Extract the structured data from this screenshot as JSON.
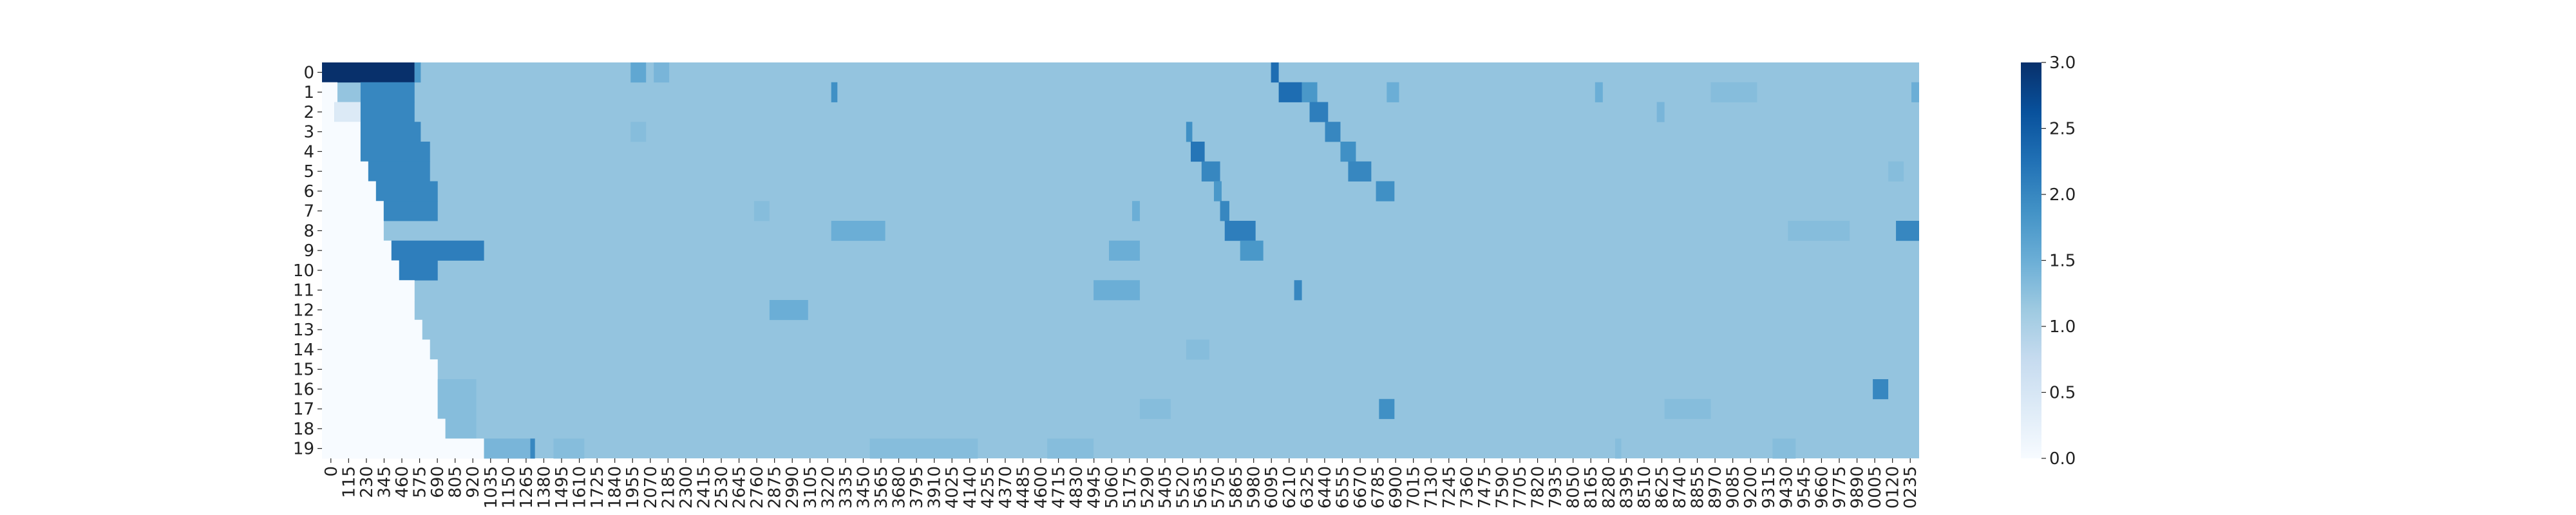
{
  "chart_data": {
    "type": "heatmap",
    "title": "",
    "xlabel": "",
    "ylabel": "",
    "y_categories": [
      "0",
      "1",
      "2",
      "3",
      "4",
      "5",
      "6",
      "7",
      "8",
      "9",
      "10",
      "11",
      "12",
      "13",
      "14",
      "15",
      "16",
      "17",
      "18",
      "19"
    ],
    "x_tick_labels": [
      "0",
      "115",
      "230",
      "345",
      "460",
      "575",
      "690",
      "805",
      "920",
      "1035",
      "1150",
      "1265",
      "1380",
      "1495",
      "1610",
      "1725",
      "1840",
      "1955",
      "2070",
      "2185",
      "2300",
      "2415",
      "2530",
      "2645",
      "2760",
      "2875",
      "2990",
      "3105",
      "3220",
      "3335",
      "3450",
      "3565",
      "3680",
      "3795",
      "3910",
      "4025",
      "4140",
      "4255",
      "4370",
      "4485",
      "4600",
      "4715",
      "4830",
      "4945",
      "5060",
      "5175",
      "5290",
      "5405",
      "5520",
      "5635",
      "5750",
      "5865",
      "5980",
      "6095",
      "6210",
      "6325",
      "6440",
      "6555",
      "6670",
      "6785",
      "6900",
      "7015",
      "7130",
      "7245",
      "7360",
      "7475",
      "7590",
      "7705",
      "7820",
      "7935",
      "8050",
      "8165",
      "8280",
      "8395",
      "8510",
      "8625",
      "8740",
      "8855",
      "8970",
      "9085",
      "9200",
      "9315",
      "9430",
      "9545",
      "9660",
      "9775",
      "9890",
      "0005",
      "0120",
      "0235"
    ],
    "x_range": [
      0,
      10350
    ],
    "colorscale": "Blues",
    "colorbar": {
      "min": 0.0,
      "max": 3.0,
      "ticks": [
        "0.0",
        "0.5",
        "1.0",
        "1.5",
        "2.0",
        "2.5",
        "3.0"
      ]
    },
    "background_value": 1.2,
    "rows": [
      {
        "row": 0,
        "segments": [
          [
            0,
            600,
            3.0
          ],
          [
            600,
            640,
            1.8
          ],
          [
            2000,
            2100,
            1.6
          ],
          [
            2150,
            2250,
            1.4
          ],
          [
            6150,
            6200,
            2.3
          ]
        ]
      },
      {
        "row": 1,
        "segments": [
          [
            0,
            100,
            0.0
          ],
          [
            250,
            600,
            2.0
          ],
          [
            3300,
            3340,
            1.9
          ],
          [
            6200,
            6350,
            2.3
          ],
          [
            6350,
            6450,
            1.8
          ],
          [
            6900,
            6980,
            1.5
          ],
          [
            8250,
            8300,
            1.5
          ],
          [
            9000,
            9300,
            1.3
          ],
          [
            10300,
            10350,
            1.5
          ]
        ]
      },
      {
        "row": 2,
        "segments": [
          [
            0,
            80,
            0.0
          ],
          [
            80,
            250,
            0.4
          ],
          [
            250,
            600,
            2.0
          ],
          [
            6400,
            6520,
            2.1
          ],
          [
            8650,
            8700,
            1.4
          ]
        ]
      },
      {
        "row": 3,
        "segments": [
          [
            0,
            250,
            0.0
          ],
          [
            250,
            640,
            2.0
          ],
          [
            2000,
            2100,
            1.3
          ],
          [
            5600,
            5640,
            1.9
          ],
          [
            6500,
            6600,
            2.0
          ]
        ]
      },
      {
        "row": 4,
        "segments": [
          [
            0,
            250,
            0.0
          ],
          [
            250,
            700,
            2.0
          ],
          [
            5630,
            5720,
            2.2
          ],
          [
            6600,
            6700,
            1.9
          ]
        ]
      },
      {
        "row": 5,
        "segments": [
          [
            0,
            300,
            0.0
          ],
          [
            300,
            700,
            2.0
          ],
          [
            5700,
            5820,
            2.0
          ],
          [
            6650,
            6800,
            2.0
          ],
          [
            10150,
            10250,
            1.3
          ]
        ]
      },
      {
        "row": 6,
        "segments": [
          [
            0,
            350,
            0.0
          ],
          [
            350,
            750,
            2.0
          ],
          [
            5780,
            5830,
            1.8
          ],
          [
            6830,
            6950,
            1.9
          ]
        ]
      },
      {
        "row": 7,
        "segments": [
          [
            0,
            400,
            0.0
          ],
          [
            400,
            750,
            2.0
          ],
          [
            2800,
            2900,
            1.3
          ],
          [
            5250,
            5300,
            1.5
          ],
          [
            5820,
            5880,
            2.0
          ]
        ]
      },
      {
        "row": 8,
        "segments": [
          [
            0,
            400,
            0.0
          ],
          [
            3300,
            3650,
            1.5
          ],
          [
            5850,
            6050,
            2.1
          ],
          [
            9500,
            9900,
            1.3
          ],
          [
            10200,
            10350,
            2.0
          ]
        ]
      },
      {
        "row": 9,
        "segments": [
          [
            0,
            450,
            0.0
          ],
          [
            450,
            1050,
            2.1
          ],
          [
            5100,
            5300,
            1.5
          ],
          [
            5950,
            6100,
            1.8
          ]
        ]
      },
      {
        "row": 10,
        "segments": [
          [
            0,
            500,
            0.0
          ],
          [
            500,
            750,
            2.1
          ]
        ]
      },
      {
        "row": 11,
        "segments": [
          [
            0,
            600,
            0.0
          ],
          [
            5000,
            5300,
            1.5
          ],
          [
            6300,
            6350,
            2.0
          ]
        ]
      },
      {
        "row": 12,
        "segments": [
          [
            0,
            600,
            0.0
          ],
          [
            2900,
            3150,
            1.5
          ]
        ]
      },
      {
        "row": 13,
        "segments": [
          [
            0,
            650,
            0.0
          ]
        ]
      },
      {
        "row": 14,
        "segments": [
          [
            0,
            700,
            0.0
          ],
          [
            5600,
            5750,
            1.3
          ]
        ]
      },
      {
        "row": 15,
        "segments": [
          [
            0,
            750,
            0.0
          ]
        ]
      },
      {
        "row": 16,
        "segments": [
          [
            0,
            750,
            0.0
          ],
          [
            750,
            1000,
            1.3
          ],
          [
            10050,
            10150,
            2.0
          ]
        ]
      },
      {
        "row": 17,
        "segments": [
          [
            0,
            750,
            0.0
          ],
          [
            750,
            1000,
            1.3
          ],
          [
            5300,
            5500,
            1.3
          ],
          [
            6850,
            6950,
            1.9
          ],
          [
            8700,
            9000,
            1.3
          ]
        ]
      },
      {
        "row": 18,
        "segments": [
          [
            0,
            800,
            0.0
          ],
          [
            800,
            1000,
            1.3
          ]
        ]
      },
      {
        "row": 19,
        "segments": [
          [
            0,
            1050,
            0.0
          ],
          [
            1050,
            1350,
            1.4
          ],
          [
            1350,
            1380,
            2.0
          ],
          [
            1500,
            1700,
            1.3
          ],
          [
            3550,
            4250,
            1.3
          ],
          [
            4700,
            5000,
            1.3
          ],
          [
            8380,
            8420,
            1.3
          ],
          [
            9400,
            9550,
            1.3
          ]
        ]
      }
    ]
  }
}
